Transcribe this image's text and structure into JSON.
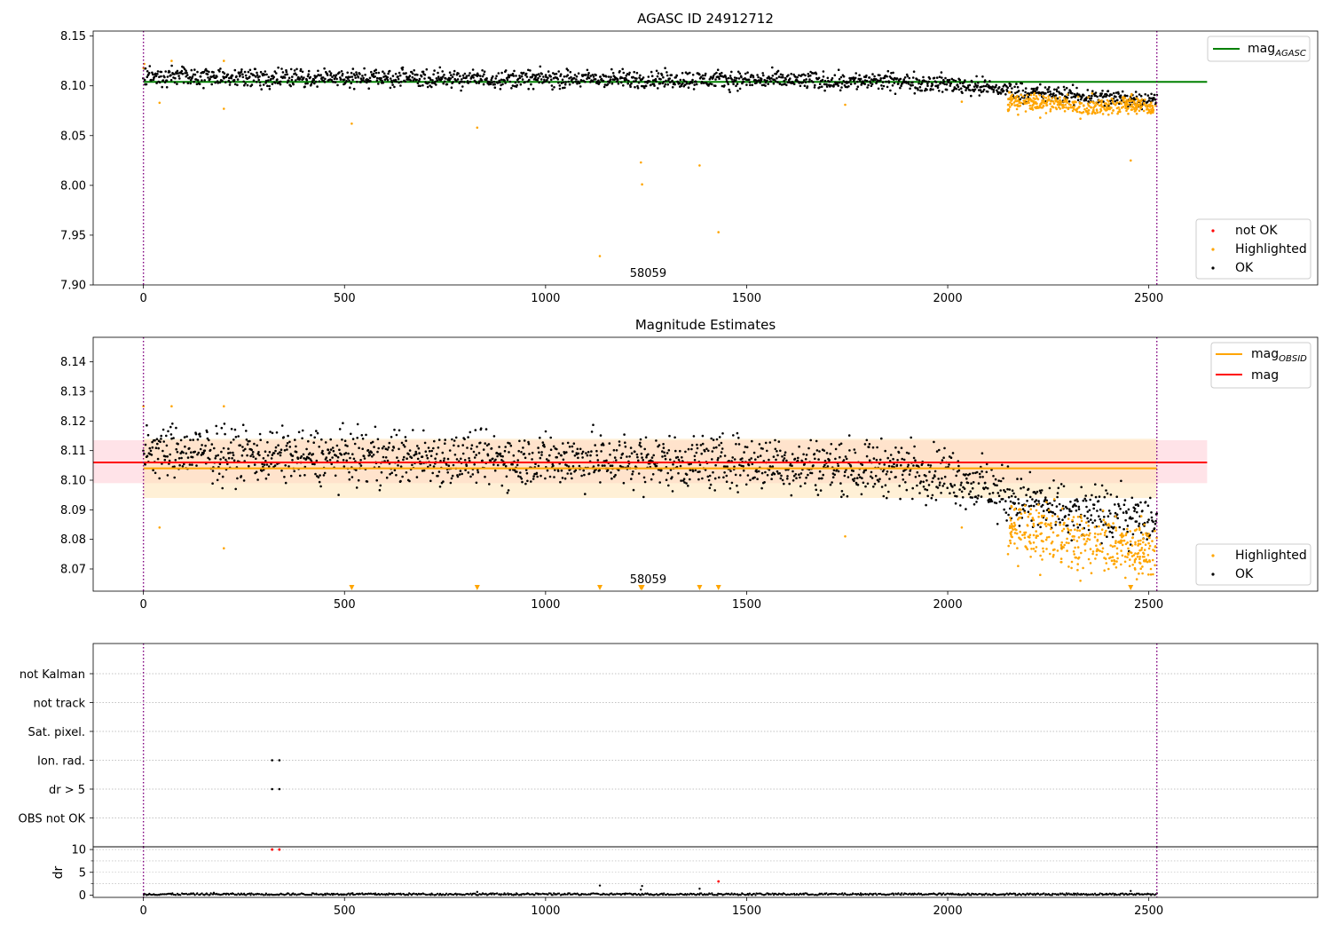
{
  "colors": {
    "ok": "#000000",
    "highlighted": "#ffa500",
    "not_ok": "#ff0000",
    "mag_agasc": "#008000",
    "mag_obsid": "#ffa500",
    "mag": "#ff0000",
    "obs_boundary": "#800080",
    "mag_band": "#ffc0cb",
    "obsid_band": "#ffe4b5",
    "grid": "#b0b0b0"
  },
  "chart_data": [
    {
      "type": "scatter",
      "title": "AGASC ID 24912712",
      "xlim": [
        -125,
        2920
      ],
      "ylim": [
        7.9,
        8.155
      ],
      "x_ticks": [
        0,
        500,
        1000,
        1500,
        2000,
        2500
      ],
      "x_tick_labels": [
        "0",
        "500",
        "1000",
        "1500",
        "2000",
        "2500"
      ],
      "y_ticks": [
        7.9,
        7.95,
        8.0,
        8.05,
        8.1,
        8.15
      ],
      "y_tick_labels": [
        "7.90",
        "7.95",
        "8.00",
        "8.05",
        "8.10",
        "8.15"
      ],
      "obs_boundaries": [
        0,
        2520
      ],
      "obsid_label": "58059",
      "obsid_label_x": 1255,
      "mag_agasc": {
        "value": 8.104,
        "x": [
          0,
          2645
        ]
      },
      "legend_lines": [
        {
          "label": "mag",
          "subscript": "AGASC",
          "color_key": "mag_agasc"
        }
      ],
      "legend_points": [
        {
          "label": "not OK",
          "color_key": "not_ok"
        },
        {
          "label": "Highlighted",
          "color_key": "highlighted"
        },
        {
          "label": "OK",
          "color_key": "ok"
        }
      ],
      "ok_trend": {
        "x": [
          0,
          400,
          1000,
          1500,
          1900,
          2000,
          2100,
          2200,
          2300,
          2400,
          2520
        ],
        "y": [
          8.11,
          8.108,
          8.107,
          8.106,
          8.104,
          8.102,
          8.098,
          8.093,
          8.09,
          8.088,
          8.086
        ],
        "spread": 0.0045
      },
      "highlight_trend": {
        "x": [
          2150,
          2250,
          2350,
          2450,
          2520
        ],
        "y": [
          8.084,
          8.083,
          8.08,
          8.08,
          8.078
        ],
        "spread": 0.0045
      },
      "highlighted_points": [
        [
          0,
          8.118
        ],
        [
          2,
          8.122
        ],
        [
          40,
          8.083
        ],
        [
          70,
          8.125
        ],
        [
          200,
          8.125
        ],
        [
          200,
          8.077
        ],
        [
          518,
          8.062
        ],
        [
          830,
          8.058
        ],
        [
          1135,
          7.929
        ],
        [
          1237,
          8.023
        ],
        [
          1240,
          8.001
        ],
        [
          1383,
          8.02
        ],
        [
          1430,
          7.953
        ],
        [
          1745,
          8.081
        ],
        [
          2035,
          8.084
        ],
        [
          2150,
          8.076
        ],
        [
          2175,
          8.071
        ],
        [
          2210,
          8.078
        ],
        [
          2230,
          8.068
        ],
        [
          2330,
          8.067
        ],
        [
          2400,
          8.071
        ],
        [
          2455,
          8.025
        ],
        [
          2470,
          8.072
        ],
        [
          2510,
          8.074
        ]
      ]
    },
    {
      "type": "scatter",
      "title": "Magnitude Estimates",
      "xlim": [
        -125,
        2920
      ],
      "ylim": [
        8.0625,
        8.1483
      ],
      "x_ticks": [
        0,
        500,
        1000,
        1500,
        2000,
        2500
      ],
      "x_tick_labels": [
        "0",
        "500",
        "1000",
        "1500",
        "2000",
        "2500"
      ],
      "y_ticks": [
        8.07,
        8.08,
        8.09,
        8.1,
        8.11,
        8.12,
        8.13,
        8.14
      ],
      "y_tick_labels": [
        "8.07",
        "8.08",
        "8.09",
        "8.10",
        "8.11",
        "8.12",
        "8.13",
        "8.14"
      ],
      "obs_boundaries": [
        0,
        2520
      ],
      "obsid_label": "58059",
      "obsid_label_x": 1255,
      "mag": {
        "value": 8.106,
        "band": [
          8.099,
          8.1135
        ],
        "x": [
          -125,
          2645
        ]
      },
      "mag_obsid": {
        "value": 8.104,
        "band": [
          8.094,
          8.114
        ],
        "x": [
          0,
          2520
        ]
      },
      "legend_lines": [
        {
          "label": "mag",
          "subscript": "OBSID",
          "color_key": "mag_obsid"
        },
        {
          "label": "mag",
          "subscript": "",
          "color_key": "mag"
        }
      ],
      "legend_points": [
        {
          "label": "Highlighted",
          "color_key": "highlighted"
        },
        {
          "label": "OK",
          "color_key": "ok"
        }
      ],
      "ok_trend": {
        "x": [
          0,
          400,
          1000,
          1500,
          1900,
          2000,
          2100,
          2200,
          2300,
          2400,
          2520
        ],
        "y": [
          8.11,
          8.108,
          8.107,
          8.106,
          8.104,
          8.102,
          8.097,
          8.092,
          8.089,
          8.088,
          8.086
        ],
        "spread": 0.0045
      },
      "highlight_trend": {
        "x": [
          2150,
          2250,
          2350,
          2450,
          2520
        ],
        "y": [
          8.084,
          8.082,
          8.079,
          8.078,
          8.076
        ],
        "spread": 0.0045
      },
      "highlighted_points": [
        [
          0,
          8.125
        ],
        [
          40,
          8.084
        ],
        [
          70,
          8.125
        ],
        [
          200,
          8.125
        ],
        [
          200,
          8.077
        ],
        [
          1745,
          8.081
        ],
        [
          2035,
          8.084
        ],
        [
          2150,
          8.075
        ],
        [
          2175,
          8.071
        ],
        [
          2230,
          8.068
        ],
        [
          2330,
          8.066
        ],
        [
          2400,
          8.07
        ],
        [
          2510,
          8.073
        ]
      ],
      "off_scale_markers": [
        518,
        830,
        1135,
        1237,
        1240,
        1383,
        1430,
        2455
      ]
    },
    {
      "type": "scatter",
      "title": "",
      "xlim": [
        -125,
        2920
      ],
      "flag_rows": [
        "not Kalman",
        "not track",
        "Sat. pixel.",
        "Ion. rad.",
        "dr > 5",
        "OBS not OK"
      ],
      "flag_points": [
        {
          "row": "Ion. rad.",
          "x": [
            320,
            338
          ]
        },
        {
          "row": "dr > 5",
          "x": [
            320,
            338
          ]
        }
      ]
    },
    {
      "type": "scatter",
      "title": "",
      "xlim": [
        -125,
        2920
      ],
      "ylim": [
        -0.5,
        10.6
      ],
      "ylabel": "dr",
      "x_ticks": [
        0,
        500,
        1000,
        1500,
        2000,
        2500
      ],
      "x_tick_labels": [
        "0",
        "500",
        "1000",
        "1500",
        "2000",
        "2500"
      ],
      "y_ticks": [
        0,
        5,
        10
      ],
      "y_tick_labels": [
        "0",
        "5",
        "10"
      ],
      "obs_boundaries": [
        0,
        2520
      ],
      "dr_baseline_max": 0.4,
      "dr_not_ok_points": [
        [
          320,
          10
        ],
        [
          338,
          10
        ],
        [
          1430,
          3.0
        ]
      ],
      "dr_ok_points": [
        [
          1135,
          2.1
        ],
        [
          1237,
          1.2
        ],
        [
          1240,
          2.0
        ],
        [
          1383,
          1.4
        ],
        [
          830,
          0.7
        ],
        [
          2455,
          0.9
        ],
        [
          175,
          0.5
        ],
        [
          520,
          0.4
        ]
      ]
    }
  ]
}
